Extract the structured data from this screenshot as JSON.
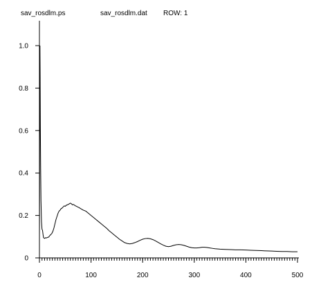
{
  "header": {
    "file_ps": "sav_rosdlm.ps",
    "file_dat": "sav_rosdlm.dat",
    "row_label": "ROW: 1"
  },
  "chart_data": {
    "type": "line",
    "xlim": [
      0,
      500
    ],
    "ylim": [
      0,
      1.0
    ],
    "x_ticks": [
      0,
      100,
      200,
      300,
      400,
      500
    ],
    "y_ticks": [
      0,
      0.2,
      0.4,
      0.6,
      0.8,
      1.0
    ],
    "x_tick_labels": [
      "0",
      "100",
      "200",
      "300",
      "400",
      "500"
    ],
    "y_tick_labels": [
      "0",
      "0.2",
      "0.4",
      "0.6",
      "0.8",
      "1.0"
    ],
    "x_minor_step": 5,
    "line_color": "#000000",
    "series": [
      {
        "points": [
          [
            0,
            0.1
          ],
          [
            0.3,
            0.3
          ],
          [
            0.6,
            0.7
          ],
          [
            1.0,
            1.0
          ],
          [
            1.4,
            0.85
          ],
          [
            1.8,
            0.62
          ],
          [
            2.4,
            0.42
          ],
          [
            3,
            0.27
          ],
          [
            4,
            0.17
          ],
          [
            5,
            0.135
          ],
          [
            6,
            0.13
          ],
          [
            7,
            0.11
          ],
          [
            8,
            0.095
          ],
          [
            10,
            0.092
          ],
          [
            12,
            0.095
          ],
          [
            14,
            0.094
          ],
          [
            16,
            0.097
          ],
          [
            18,
            0.098
          ],
          [
            20,
            0.105
          ],
          [
            22,
            0.11
          ],
          [
            24,
            0.115
          ],
          [
            26,
            0.125
          ],
          [
            28,
            0.14
          ],
          [
            30,
            0.16
          ],
          [
            32,
            0.18
          ],
          [
            34,
            0.195
          ],
          [
            36,
            0.21
          ],
          [
            38,
            0.22
          ],
          [
            40,
            0.225
          ],
          [
            42,
            0.232
          ],
          [
            44,
            0.235
          ],
          [
            46,
            0.24
          ],
          [
            48,
            0.245
          ],
          [
            50,
            0.243
          ],
          [
            52,
            0.248
          ],
          [
            54,
            0.25
          ],
          [
            56,
            0.252
          ],
          [
            58,
            0.255
          ],
          [
            60,
            0.258
          ],
          [
            62,
            0.255
          ],
          [
            64,
            0.25
          ],
          [
            66,
            0.252
          ],
          [
            68,
            0.248
          ],
          [
            70,
            0.245
          ],
          [
            72,
            0.243
          ],
          [
            74,
            0.24
          ],
          [
            76,
            0.238
          ],
          [
            78,
            0.235
          ],
          [
            80,
            0.232
          ],
          [
            85,
            0.225
          ],
          [
            90,
            0.22
          ],
          [
            95,
            0.21
          ],
          [
            100,
            0.2
          ],
          [
            105,
            0.19
          ],
          [
            110,
            0.18
          ],
          [
            115,
            0.17
          ],
          [
            120,
            0.16
          ],
          [
            125,
            0.15
          ],
          [
            130,
            0.14
          ],
          [
            135,
            0.128
          ],
          [
            140,
            0.118
          ],
          [
            145,
            0.108
          ],
          [
            150,
            0.098
          ],
          [
            155,
            0.088
          ],
          [
            160,
            0.08
          ],
          [
            165,
            0.072
          ],
          [
            170,
            0.068
          ],
          [
            175,
            0.066
          ],
          [
            180,
            0.068
          ],
          [
            185,
            0.072
          ],
          [
            190,
            0.077
          ],
          [
            195,
            0.083
          ],
          [
            200,
            0.088
          ],
          [
            205,
            0.091
          ],
          [
            210,
            0.092
          ],
          [
            215,
            0.09
          ],
          [
            220,
            0.086
          ],
          [
            225,
            0.08
          ],
          [
            230,
            0.073
          ],
          [
            235,
            0.066
          ],
          [
            240,
            0.06
          ],
          [
            245,
            0.055
          ],
          [
            250,
            0.053
          ],
          [
            255,
            0.055
          ],
          [
            260,
            0.059
          ],
          [
            265,
            0.062
          ],
          [
            270,
            0.063
          ],
          [
            275,
            0.062
          ],
          [
            280,
            0.059
          ],
          [
            285,
            0.055
          ],
          [
            290,
            0.051
          ],
          [
            295,
            0.048
          ],
          [
            300,
            0.047
          ],
          [
            305,
            0.047
          ],
          [
            310,
            0.048
          ],
          [
            315,
            0.05
          ],
          [
            320,
            0.05
          ],
          [
            325,
            0.049
          ],
          [
            330,
            0.047
          ],
          [
            335,
            0.045
          ],
          [
            340,
            0.043
          ],
          [
            350,
            0.041
          ],
          [
            360,
            0.04
          ],
          [
            370,
            0.039
          ],
          [
            380,
            0.038
          ],
          [
            390,
            0.038
          ],
          [
            400,
            0.037
          ],
          [
            410,
            0.036
          ],
          [
            420,
            0.035
          ],
          [
            430,
            0.034
          ],
          [
            440,
            0.033
          ],
          [
            450,
            0.032
          ],
          [
            460,
            0.031
          ],
          [
            470,
            0.03
          ],
          [
            480,
            0.03
          ],
          [
            490,
            0.029
          ],
          [
            500,
            0.029
          ]
        ]
      }
    ]
  }
}
